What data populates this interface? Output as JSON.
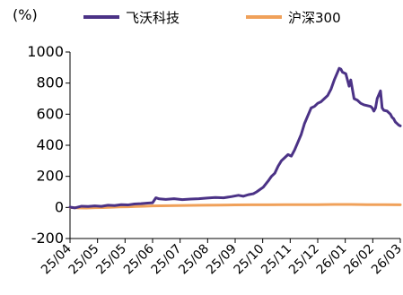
{
  "chart_data": {
    "type": "line",
    "unit_label": "(%)",
    "y_ticks": [
      1000,
      800,
      600,
      400,
      200,
      0,
      -200
    ],
    "ylim": [
      -200,
      1000
    ],
    "x_ticks": [
      "25/04",
      "25/05",
      "25/05",
      "25/06",
      "25/07",
      "25/08",
      "25/09",
      "25/10",
      "25/11",
      "25/12",
      "26/01",
      "26/02",
      "26/03"
    ],
    "grid": false,
    "legend_position": "top",
    "series": [
      {
        "name": "飞沃科技",
        "color": "#4b3286",
        "points": [
          [
            0.0,
            2
          ],
          [
            0.06,
            -3
          ],
          [
            0.14,
            8
          ],
          [
            0.22,
            6
          ],
          [
            0.3,
            10
          ],
          [
            0.38,
            7
          ],
          [
            0.46,
            14
          ],
          [
            0.54,
            12
          ],
          [
            0.62,
            18
          ],
          [
            0.7,
            16
          ],
          [
            0.78,
            22
          ],
          [
            0.86,
            24
          ],
          [
            0.94,
            28
          ],
          [
            1.0,
            30
          ],
          [
            1.04,
            62
          ],
          [
            1.08,
            55
          ],
          [
            1.16,
            52
          ],
          [
            1.26,
            56
          ],
          [
            1.36,
            50
          ],
          [
            1.46,
            54
          ],
          [
            1.56,
            56
          ],
          [
            1.66,
            60
          ],
          [
            1.76,
            64
          ],
          [
            1.86,
            62
          ],
          [
            1.96,
            70
          ],
          [
            2.04,
            78
          ],
          [
            2.1,
            72
          ],
          [
            2.16,
            82
          ],
          [
            2.22,
            88
          ],
          [
            2.26,
            100
          ],
          [
            2.3,
            115
          ],
          [
            2.34,
            130
          ],
          [
            2.4,
            170
          ],
          [
            2.44,
            200
          ],
          [
            2.48,
            220
          ],
          [
            2.52,
            265
          ],
          [
            2.56,
            300
          ],
          [
            2.6,
            320
          ],
          [
            2.64,
            340
          ],
          [
            2.68,
            330
          ],
          [
            2.72,
            370
          ],
          [
            2.76,
            420
          ],
          [
            2.8,
            470
          ],
          [
            2.84,
            540
          ],
          [
            2.88,
            590
          ],
          [
            2.92,
            640
          ],
          [
            2.96,
            650
          ],
          [
            3.0,
            670
          ],
          [
            3.04,
            680
          ],
          [
            3.08,
            700
          ],
          [
            3.12,
            720
          ],
          [
            3.16,
            760
          ],
          [
            3.2,
            820
          ],
          [
            3.24,
            870
          ],
          [
            3.26,
            895
          ],
          [
            3.28,
            890
          ],
          [
            3.3,
            870
          ],
          [
            3.34,
            860
          ],
          [
            3.38,
            780
          ],
          [
            3.4,
            820
          ],
          [
            3.44,
            700
          ],
          [
            3.48,
            690
          ],
          [
            3.52,
            670
          ],
          [
            3.56,
            660
          ],
          [
            3.6,
            655
          ],
          [
            3.64,
            650
          ],
          [
            3.66,
            640
          ],
          [
            3.68,
            620
          ],
          [
            3.7,
            640
          ],
          [
            3.72,
            700
          ],
          [
            3.76,
            750
          ],
          [
            3.78,
            640
          ],
          [
            3.8,
            625
          ],
          [
            3.84,
            620
          ],
          [
            3.88,
            600
          ],
          [
            3.9,
            580
          ],
          [
            3.92,
            570
          ],
          [
            3.94,
            550
          ],
          [
            3.98,
            530
          ],
          [
            4.0,
            525
          ]
        ]
      },
      {
        "name": "沪深300",
        "color": "#f0a15a",
        "points": [
          [
            0.0,
            0
          ],
          [
            0.1,
            -3
          ],
          [
            0.2,
            -4
          ],
          [
            0.3,
            -2
          ],
          [
            0.4,
            -1
          ],
          [
            0.5,
            1
          ],
          [
            0.6,
            3
          ],
          [
            0.7,
            4
          ],
          [
            0.8,
            6
          ],
          [
            0.9,
            8
          ],
          [
            1.0,
            10
          ],
          [
            1.2,
            11
          ],
          [
            1.4,
            13
          ],
          [
            1.6,
            14
          ],
          [
            1.8,
            15
          ],
          [
            2.0,
            16
          ],
          [
            2.2,
            17
          ],
          [
            2.4,
            17
          ],
          [
            2.6,
            18
          ],
          [
            2.8,
            18
          ],
          [
            3.0,
            18
          ],
          [
            3.2,
            19
          ],
          [
            3.4,
            19
          ],
          [
            3.6,
            18
          ],
          [
            3.8,
            18
          ],
          [
            4.0,
            17
          ]
        ]
      }
    ]
  }
}
